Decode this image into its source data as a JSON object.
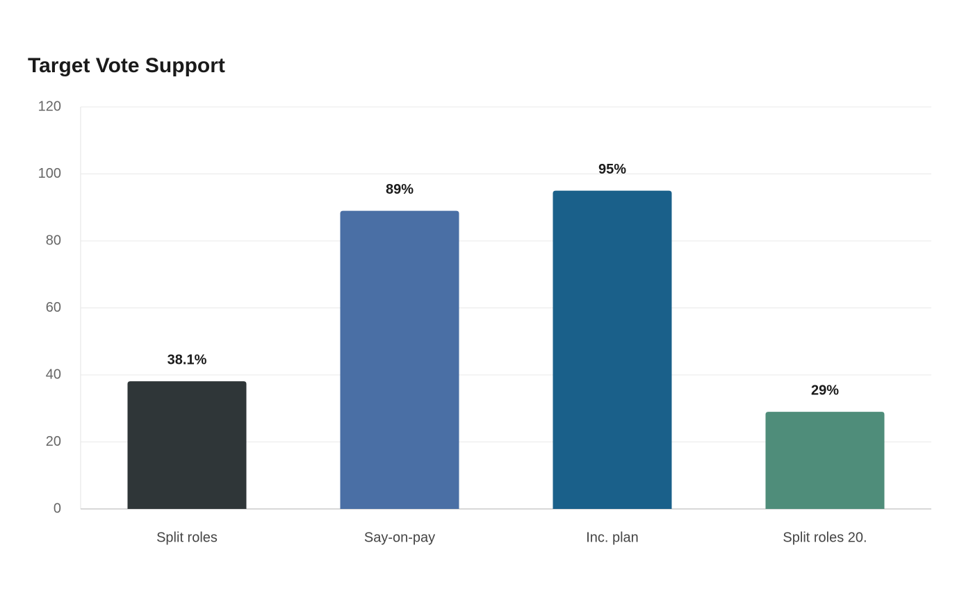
{
  "chart_data": {
    "type": "bar",
    "title": "Target Vote Support",
    "categories": [
      "Split roles",
      "Say-on-pay",
      "Inc. plan",
      "Split roles 20."
    ],
    "values": [
      38.1,
      89,
      95,
      29
    ],
    "value_labels": [
      "38.1%",
      "89%",
      "95%",
      "29%"
    ],
    "colors": [
      "#2f3638",
      "#4a6fa5",
      "#1a608a",
      "#4f8d7a"
    ],
    "ylim": [
      0,
      120
    ],
    "yticks": [
      0,
      20,
      40,
      60,
      80,
      100,
      120
    ],
    "grid": true
  }
}
